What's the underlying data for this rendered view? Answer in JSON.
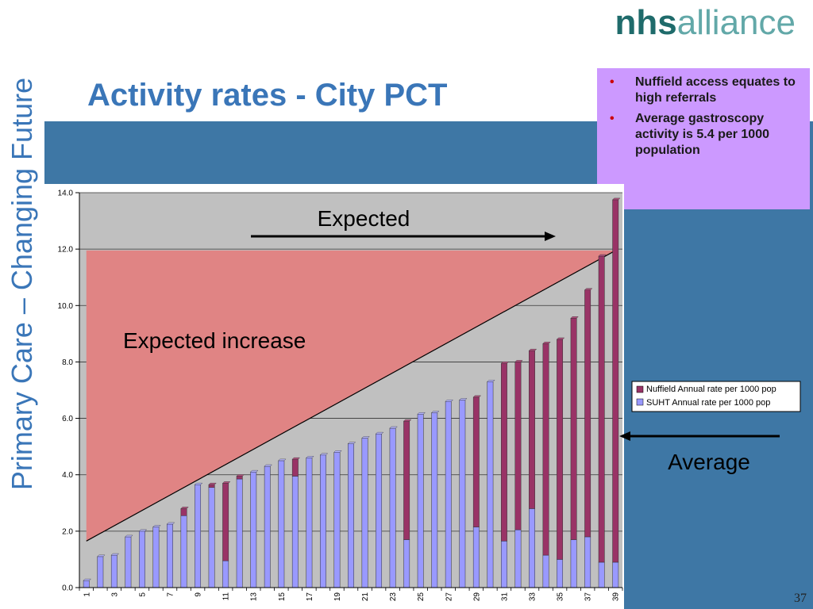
{
  "side_title": "Primary Care – Changing Future",
  "logo": {
    "nhs": "nhs",
    "alliance": "alliance"
  },
  "slide_title": "Activity rates - City PCT",
  "notes": [
    "Nuffield access equates to high referrals",
    "Average gastroscopy activity is 5.4 per 1000 population"
  ],
  "page_number": "37",
  "annotations": {
    "expected": "Expected",
    "expected_increase": "Expected increase",
    "average": "Average"
  },
  "colors": {
    "plot_bg": "#c0c0c0",
    "suht": "#9999ff",
    "nuffield": "#993366",
    "expected_fill": "#e08484",
    "slide_blue": "#3e77a5",
    "accent_blue": "#3a76b8"
  },
  "chart_data": {
    "type": "bar",
    "stacked": true,
    "ylim": [
      0,
      14
    ],
    "y_ticks": [
      "0.0",
      "2.0",
      "4.0",
      "6.0",
      "8.0",
      "10.0",
      "12.0",
      "14.0"
    ],
    "x_tick_labels": [
      "1",
      "3",
      "5",
      "7",
      "9",
      "11",
      "13",
      "15",
      "17",
      "19",
      "21",
      "23",
      "25",
      "27",
      "29",
      "31",
      "33",
      "35",
      "37",
      "39"
    ],
    "categories": [
      "1",
      "2",
      "3",
      "4",
      "5",
      "6",
      "7",
      "8",
      "9",
      "10",
      "11",
      "12",
      "13",
      "14",
      "15",
      "16",
      "17",
      "18",
      "19",
      "20",
      "21",
      "22",
      "23",
      "24",
      "25",
      "26",
      "27",
      "28",
      "29",
      "30",
      "31",
      "32",
      "33",
      "34",
      "35",
      "36",
      "37",
      "38",
      "39"
    ],
    "grid": true,
    "legend_position": "right",
    "series": [
      {
        "name": "Nuffield Annual rate per 1000 pop",
        "values": [
          0.0,
          0.0,
          0.0,
          0.0,
          0.0,
          0.0,
          0.0,
          0.25,
          0.0,
          0.1,
          2.75,
          0.1,
          0.0,
          0.0,
          0.0,
          0.6,
          0.0,
          0.0,
          0.0,
          0.0,
          0.0,
          0.0,
          0.0,
          4.2,
          0.0,
          0.0,
          0.0,
          0.0,
          4.6,
          0.0,
          6.3,
          5.95,
          5.6,
          7.5,
          7.8,
          7.85,
          8.75,
          10.85,
          12.85
        ]
      },
      {
        "name": "SUHT Annual rate per 1000 pop",
        "values": [
          0.25,
          1.1,
          1.15,
          1.8,
          2.0,
          2.15,
          2.25,
          2.55,
          3.65,
          3.55,
          0.95,
          3.85,
          4.1,
          4.3,
          4.5,
          3.95,
          4.6,
          4.7,
          4.8,
          5.1,
          5.3,
          5.45,
          5.65,
          1.7,
          6.15,
          6.2,
          6.6,
          6.65,
          2.15,
          7.3,
          1.65,
          2.05,
          2.8,
          1.15,
          1.0,
          1.7,
          1.8,
          0.9,
          0.9
        ]
      }
    ],
    "expected_line": {
      "start": [
        1,
        1.65
      ],
      "end": [
        39,
        11.95
      ]
    },
    "expected_region_top": 11.95,
    "average_value": 5.4
  }
}
